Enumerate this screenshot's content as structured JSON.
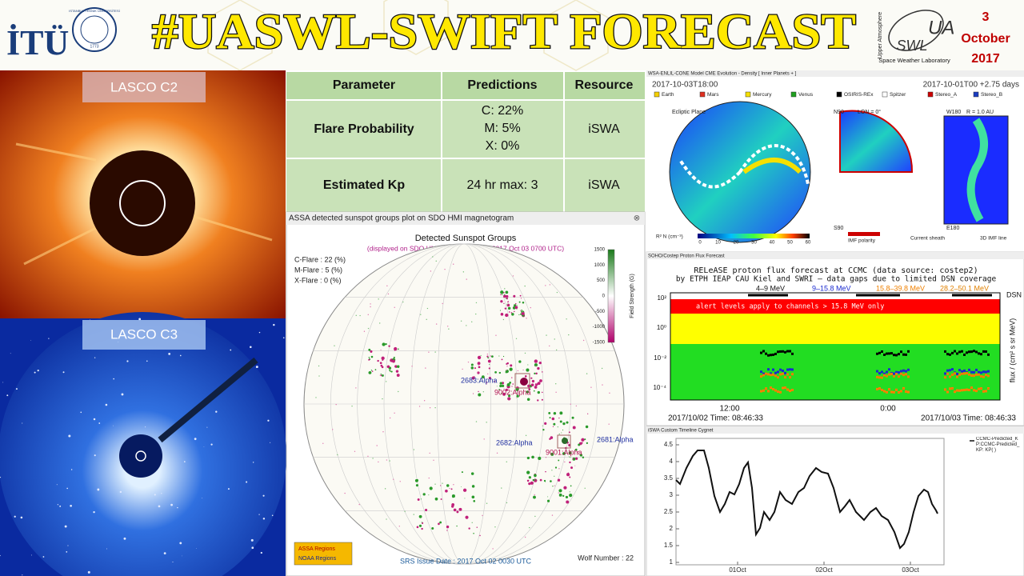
{
  "header": {
    "left_logo": "İTÜ",
    "seal_text": "ISTANBUL TEKNIK ÜNİVERSİTESİ",
    "seal_year": "1773",
    "title": "#UASWL-SWIFT FORECAST",
    "right_logo": {
      "mark": "SWL",
      "mark_top": "UA",
      "side": "Upper Atmosphere",
      "caption": "Space Weather Laboratory"
    },
    "date": {
      "day": "3",
      "month": "October",
      "year": "2017"
    }
  },
  "coronagraphs": [
    {
      "label": "LASCO C2"
    },
    {
      "label": "LASCO C3"
    }
  ],
  "table": {
    "header": [
      "Parameter",
      "Predictions",
      "Resource"
    ],
    "rows": [
      [
        "Flare Probability",
        [
          "C: 22%",
          "M: 5%",
          "X: 0%"
        ],
        "iSWA"
      ],
      [
        "Estimated Kp",
        [
          "24 hr max: 3"
        ],
        "iSWA"
      ]
    ]
  },
  "sunspot_panel": {
    "window_title": "ASSA detected sunspot groups plot on SDO HMI magnetogram",
    "title": "Detected Sunspot Groups",
    "subtitle": "(displayed on SDO HMI Magnetogram at 2017 Oct 03 0700 UTC)",
    "probabilities": [
      "C-Flare : 22 (%)",
      "M-Flare :  5 (%)",
      "X-Flare :  0 (%)"
    ],
    "regions": [
      "2683:Alpha",
      "9002:Alpha",
      "2682:Alpha",
      "2681:Alpha",
      "9001:Alpha"
    ],
    "colorbar_ticks": [
      "1500",
      "1000",
      "500",
      "0",
      "-500",
      "-1000",
      "-1500"
    ],
    "colorbar_label": "Field Strength (G)",
    "legend": [
      "ASSA Regions",
      "NOAA Regions"
    ],
    "issue_date": "SRS Issue Date : 2017 Oct 02 0030 UTC",
    "wolf_number": "Wolf Number : 22"
  },
  "enlil_panel": {
    "window_title": "WSA-ENLIL-CONE Model CME Evolution - Density [ Inner Planets + ]",
    "time_left": "2017-10-03T18:00",
    "time_right": "2017-10-01T00 +2.75 days",
    "legend": [
      "Earth",
      "Mars",
      "Mercury",
      "Venus",
      "OSIRIS-REx",
      "Spitzer",
      "Stereo_A",
      "Stereo_B"
    ],
    "labels": [
      "Ecliptic Plane",
      "N90",
      "LON = 0°",
      "W180",
      "R = 1.0 AU",
      "S90",
      "E180"
    ],
    "bottom": [
      "R² N (cm⁻³)",
      "IMF polarity",
      "Current sheath",
      "3D IMF line"
    ],
    "scale": [
      "0",
      "10",
      "20",
      "30",
      "40",
      "50",
      "60"
    ]
  },
  "proton_panel": {
    "window_title": "SOHO/Costep Proton Flux Forecast",
    "title": "RELeASE proton flux forecast at CCMC (data source: costep2)",
    "subtitle": "by ETPH IEAP CAU Kiel and SWRI — data gaps due to limited DSN coverage",
    "channels": [
      "4–9 MeV",
      "9–15.8 MeV",
      "15.8–39.8 MeV",
      "28.2–50.1 MeV"
    ],
    "dsn": "DSN",
    "alert": "alert levels apply to channels > 15.8 MeV only",
    "yticks": [
      "10²",
      "10⁰",
      "10⁻²",
      "10⁻⁴"
    ],
    "ylabel": "flux / (cm² s sr MeV)",
    "xticks": [
      "12:00",
      "0:00"
    ],
    "times": [
      "2017/10/02 Time: 08:46:33",
      "2017/10/03 Time: 08:46:33"
    ]
  },
  "kp_panel": {
    "window_title": "iSWA Custom Timeline Cygnet",
    "yticks": [
      "4.5",
      "4",
      "3.5",
      "3",
      "2.5",
      "2",
      "1.5",
      "1"
    ],
    "xticks": [
      "01Oct",
      "02Oct",
      "03Oct"
    ],
    "legend": "CCMC-Predicted_KP:CCMC-Predicted_KP: KP( )"
  }
}
